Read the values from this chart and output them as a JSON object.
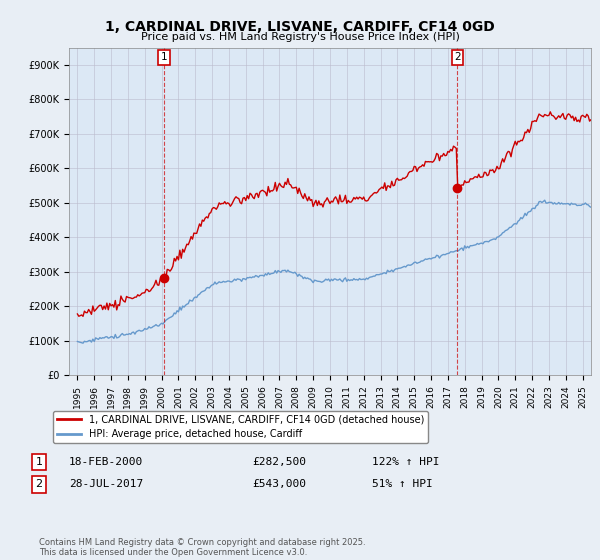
{
  "title": "1, CARDINAL DRIVE, LISVANE, CARDIFF, CF14 0GD",
  "subtitle": "Price paid vs. HM Land Registry's House Price Index (HPI)",
  "bg_color": "#e8eef5",
  "plot_bg_color": "#dce8f5",
  "red_color": "#cc0000",
  "blue_color": "#6699cc",
  "marker1_date_label": "18-FEB-2000",
  "marker1_price": 282500,
  "marker1_hpi": "122% ↑ HPI",
  "marker1_x": 2000.13,
  "marker2_date_label": "28-JUL-2017",
  "marker2_price": 543000,
  "marker2_hpi": "51% ↑ HPI",
  "marker2_x": 2017.57,
  "legend_line1": "1, CARDINAL DRIVE, LISVANE, CARDIFF, CF14 0GD (detached house)",
  "legend_line2": "HPI: Average price, detached house, Cardiff",
  "footnote": "Contains HM Land Registry data © Crown copyright and database right 2025.\nThis data is licensed under the Open Government Licence v3.0.",
  "ylim": [
    0,
    950000
  ],
  "yticks": [
    0,
    100000,
    200000,
    300000,
    400000,
    500000,
    600000,
    700000,
    800000,
    900000
  ],
  "xlim_start": 1994.5,
  "xlim_end": 2025.5
}
